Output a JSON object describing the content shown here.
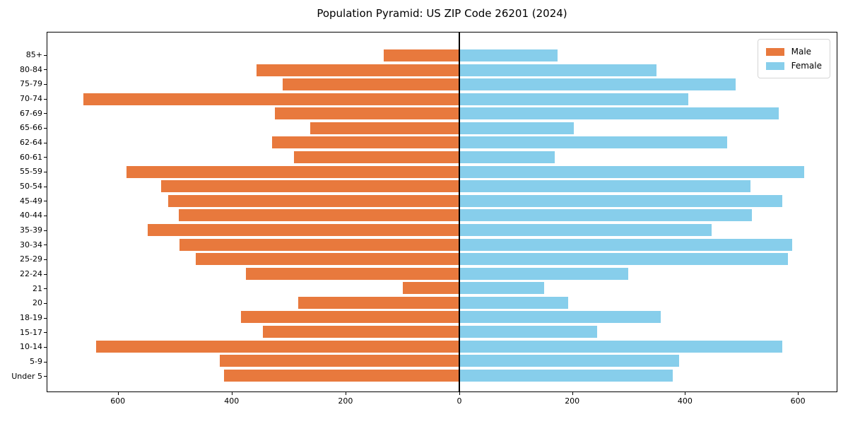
{
  "title": "Population Pyramid: US ZIP Code 26201 (2024)",
  "legend": {
    "male_label": "Male",
    "female_label": "Female"
  },
  "colors": {
    "male": "#e8793d",
    "female": "#87ceeb",
    "axis": "#000000",
    "background": "#ffffff"
  },
  "chart_data": {
    "type": "bar",
    "subtype": "population-pyramid",
    "title": "Population Pyramid: US ZIP Code 26201 (2024)",
    "categories_top_to_bottom": [
      "85+",
      "80-84",
      "75-79",
      "70-74",
      "67-69",
      "65-66",
      "62-64",
      "60-61",
      "55-59",
      "50-54",
      "45-49",
      "40-44",
      "35-39",
      "30-34",
      "25-29",
      "22-24",
      "21",
      "20",
      "18-19",
      "15-17",
      "10-14",
      "5-9",
      "Under 5"
    ],
    "series": [
      {
        "name": "Male",
        "side": "left",
        "values": [
          133,
          357,
          311,
          661,
          325,
          262,
          329,
          291,
          586,
          525,
          512,
          494,
          549,
          492,
          464,
          376,
          100,
          283,
          384,
          346,
          639,
          422,
          414
        ]
      },
      {
        "name": "Female",
        "side": "right",
        "values": [
          175,
          350,
          490,
          407,
          567,
          203,
          475,
          170,
          612,
          517,
          574,
          520,
          448,
          591,
          583,
          300,
          150,
          193,
          358,
          245,
          573,
          390,
          379
        ]
      }
    ],
    "x_ticks_left": [
      600,
      400,
      200
    ],
    "x_tick_center": 0,
    "x_ticks_right": [
      200,
      400,
      600
    ],
    "xlim_left": [
      0,
      725
    ],
    "xlim_right": [
      0,
      670
    ],
    "grid": false,
    "legend_position": "upper right"
  }
}
